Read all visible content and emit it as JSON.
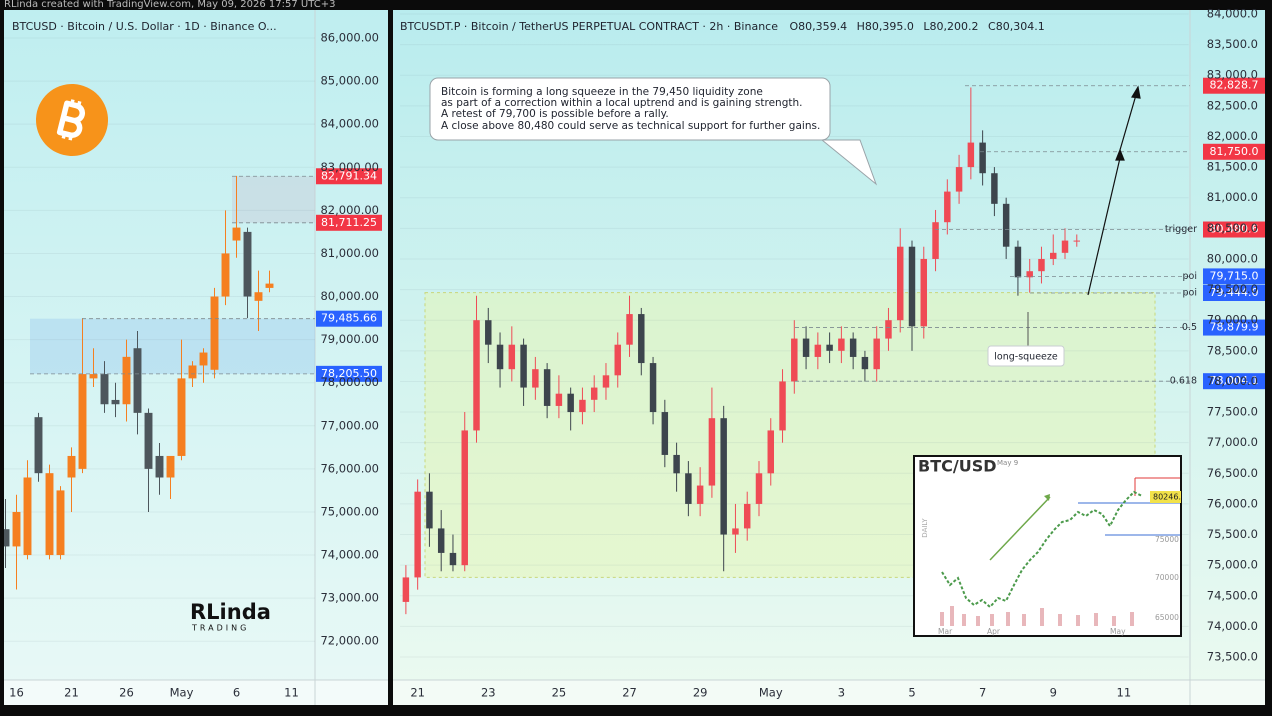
{
  "header": "RLinda created with TradingView.com, May 09, 2026 17:57 UTC+3",
  "branding": {
    "name": "RLinda",
    "tagline": "TRADING"
  },
  "chart_data": [
    {
      "type": "candlestick",
      "title": "BTCUSD · Bitcoin / U.S. Dollar · 1D · Binance  O...",
      "up_color": "#f57f20",
      "down_color": "#4d565c",
      "categories": [
        null,
        "16",
        null,
        null,
        null,
        null,
        "21",
        null,
        null,
        null,
        null,
        "26",
        null,
        null,
        null,
        null,
        "May",
        null,
        null,
        null,
        null,
        "6",
        null,
        null,
        null,
        null,
        "11",
        null,
        null
      ],
      "open": [
        74600,
        74200,
        74000,
        77200,
        74000,
        74000,
        75800,
        76000,
        78100,
        78200,
        77600,
        77500,
        78800,
        77300,
        76300,
        75800,
        76300,
        78100,
        78400,
        78300,
        80000,
        81300,
        81500,
        79900,
        80200,
        null,
        null,
        null,
        null
      ],
      "high": [
        75300,
        75400,
        76200,
        77300,
        76100,
        75600,
        76500,
        79500,
        78800,
        78500,
        78000,
        79000,
        79200,
        77400,
        76600,
        76300,
        79000,
        78500,
        78800,
        80200,
        82000,
        82800,
        81600,
        80600,
        80600,
        null,
        null,
        null,
        null
      ],
      "low": [
        73700,
        73200,
        73900,
        75700,
        73900,
        73900,
        75000,
        75900,
        77900,
        77300,
        77200,
        77100,
        76800,
        75000,
        75400,
        75300,
        76200,
        77900,
        78000,
        78100,
        79800,
        80900,
        79500,
        79200,
        80100,
        null,
        null,
        null,
        null
      ],
      "close": [
        74200,
        75000,
        75800,
        75900,
        75900,
        75500,
        76300,
        78200,
        78200,
        77500,
        77500,
        78600,
        77300,
        76000,
        75800,
        76300,
        78100,
        78400,
        78700,
        80000,
        81000,
        81600,
        80000,
        80100,
        80300,
        null,
        null,
        null,
        null
      ],
      "ylim": [
        71100,
        86650
      ],
      "yticks": [
        {
          "value": 72000,
          "label": "72,000.00"
        },
        {
          "value": 73000,
          "label": "73,000.00"
        },
        {
          "value": 74000,
          "label": "74,000.00"
        },
        {
          "value": 75000,
          "label": "75,000.00"
        },
        {
          "value": 76000,
          "label": "76,000.00"
        },
        {
          "value": 77000,
          "label": "77,000.00"
        },
        {
          "value": 78000,
          "label": "78,000.00"
        },
        {
          "value": 79000,
          "label": "79,000.00"
        },
        {
          "value": 80000,
          "label": "80,000.00"
        },
        {
          "value": 81000,
          "label": "81,000.00"
        },
        {
          "value": 82000,
          "label": "82,000.00"
        },
        {
          "value": 83000,
          "label": "83,000.00"
        },
        {
          "value": 84000,
          "label": "84,000.00"
        },
        {
          "value": 85000,
          "label": "85,000.00"
        },
        {
          "value": 86000,
          "label": "86,000.00"
        }
      ],
      "levels": [
        {
          "value": 82791.34,
          "label": "82,791.34",
          "color": "#f23645"
        },
        {
          "value": 81711.25,
          "label": "81,711.25",
          "color": "#f23645"
        },
        {
          "value": 79485.66,
          "label": "79,485.66",
          "color": "#2962ff"
        },
        {
          "value": 78205.5,
          "label": "78,205.50",
          "color": "#2962ff"
        }
      ]
    },
    {
      "type": "candlestick",
      "title": "BTCUSDT.P · Bitcoin / TetherUS PERPETUAL CONTRACT · 2h · Binance",
      "ohlc": [
        "O80,359.4",
        "H80,395.0",
        "L80,200.2",
        "C80,304.1"
      ],
      "up_color": "#ef4b55",
      "down_color": "#3d454d",
      "categories": [
        null,
        "21",
        null,
        null,
        null,
        null,
        null,
        "23",
        null,
        null,
        null,
        null,
        null,
        "25",
        null,
        null,
        null,
        null,
        null,
        "27",
        null,
        null,
        null,
        null,
        null,
        "29",
        null,
        null,
        null,
        null,
        null,
        "May",
        null,
        null,
        null,
        null,
        null,
        "3",
        null,
        null,
        null,
        null,
        null,
        "5",
        null,
        null,
        null,
        null,
        null,
        "7",
        null,
        null,
        null,
        null,
        null,
        "9",
        null,
        null,
        null,
        null,
        null,
        "11",
        null,
        null,
        null,
        null,
        null
      ],
      "open": [
        74400,
        74800,
        76200,
        75600,
        75200,
        75000,
        77200,
        79000,
        78600,
        78200,
        78600,
        77900,
        78200,
        77600,
        77800,
        77500,
        77700,
        77900,
        78100,
        78600,
        79100,
        78300,
        77500,
        76800,
        76500,
        76000,
        76300,
        77400,
        75500,
        75600,
        76000,
        76500,
        77200,
        78000,
        78700,
        78400,
        78600,
        78500,
        78700,
        78400,
        78200,
        78700,
        79000,
        80200,
        78900,
        80000,
        80600,
        81100,
        81500,
        81900,
        81400,
        80900,
        80200,
        79700,
        79800,
        80000,
        80100,
        80300,
        null,
        null,
        null,
        null,
        null,
        null,
        null,
        null,
        null
      ],
      "high": [
        75000,
        76400,
        76500,
        75900,
        75500,
        77500,
        79400,
        79200,
        78800,
        78900,
        78700,
        78400,
        78300,
        78100,
        77900,
        77900,
        78100,
        78300,
        78800,
        79400,
        79200,
        78400,
        77700,
        77000,
        76700,
        76600,
        77900,
        77600,
        76000,
        76200,
        76700,
        77400,
        78200,
        79000,
        78900,
        78800,
        78800,
        78900,
        78800,
        78500,
        78900,
        79200,
        80500,
        80300,
        80200,
        80800,
        81300,
        81700,
        82800,
        82100,
        81500,
        81000,
        80300,
        80000,
        80200,
        80400,
        80500,
        80400,
        null,
        null,
        null,
        null,
        null,
        null,
        null,
        null,
        null
      ],
      "low": [
        74200,
        74600,
        75300,
        74900,
        74900,
        74900,
        77000,
        78300,
        77900,
        78000,
        77600,
        77700,
        77400,
        77400,
        77200,
        77300,
        77500,
        77700,
        77900,
        78400,
        78100,
        77300,
        76600,
        76200,
        75800,
        75800,
        76100,
        74900,
        75200,
        75400,
        75800,
        76300,
        77000,
        77800,
        78200,
        78200,
        78300,
        78300,
        78200,
        78000,
        78000,
        78500,
        78800,
        78500,
        78700,
        79800,
        80400,
        80900,
        81300,
        81200,
        80700,
        80000,
        79400,
        79450,
        79600,
        79900,
        80000,
        80200,
        null,
        null,
        null,
        null,
        null,
        null,
        null,
        null,
        null
      ],
      "close": [
        74800,
        76200,
        75600,
        75200,
        75000,
        77200,
        79000,
        78600,
        78200,
        78600,
        77900,
        78200,
        77600,
        77800,
        77500,
        77700,
        77900,
        78100,
        78600,
        79100,
        78300,
        77500,
        76800,
        76500,
        76000,
        76300,
        77400,
        75500,
        75600,
        76000,
        76500,
        77200,
        78000,
        78700,
        78400,
        78600,
        78500,
        78700,
        78400,
        78200,
        78700,
        79000,
        80200,
        78900,
        80000,
        80600,
        81100,
        81500,
        81900,
        81400,
        80900,
        80200,
        79700,
        79800,
        80000,
        80100,
        80300,
        80300,
        null,
        null,
        null,
        null,
        null,
        null,
        null,
        null,
        null
      ],
      "ylim": [
        73125,
        84065
      ],
      "yticks": [
        {
          "value": 73500,
          "label": "73,500.0"
        },
        {
          "value": 74000,
          "label": "74,000.0"
        },
        {
          "value": 74500,
          "label": "74,500.0"
        },
        {
          "value": 75000,
          "label": "75,000.0"
        },
        {
          "value": 75500,
          "label": "75,500.0"
        },
        {
          "value": 76000,
          "label": "76,000.0"
        },
        {
          "value": 76500,
          "label": "76,500.0"
        },
        {
          "value": 77000,
          "label": "77,000.0"
        },
        {
          "value": 77500,
          "label": "77,500.0"
        },
        {
          "value": 78000,
          "label": "78,000.0"
        },
        {
          "value": 78500,
          "label": "78,500.0"
        },
        {
          "value": 79000,
          "label": "79,000.0"
        },
        {
          "value": 79500,
          "label": "79,500.0"
        },
        {
          "value": 80000,
          "label": "80,000.0"
        },
        {
          "value": 80500,
          "label": "80,500.0"
        },
        {
          "value": 81000,
          "label": "81,000.0"
        },
        {
          "value": 81500,
          "label": "81,500.0"
        },
        {
          "value": 82000,
          "label": "82,000.0"
        },
        {
          "value": 82500,
          "label": "82,500.0"
        },
        {
          "value": 83000,
          "label": "83,000.0"
        },
        {
          "value": 83500,
          "label": "83,500.0"
        },
        {
          "value": 84000,
          "label": "84,000.0"
        }
      ],
      "levels": [
        {
          "value": 82828.7,
          "label": "82,828.7",
          "color": "#f23645"
        },
        {
          "value": 81750.0,
          "label": "81,750.0",
          "color": "#f23645"
        },
        {
          "value": 80480.6,
          "label": "80,480.6",
          "color": "#f23645",
          "tag": "trigger"
        },
        {
          "value": 79715.0,
          "label": "79,715.0",
          "color": "#2962ff",
          "tag": "poi"
        },
        {
          "value": 79444.0,
          "label": "79,444.0",
          "color": "#2962ff",
          "tag": "poi"
        },
        {
          "value": 78879.9,
          "label": "78,879.9",
          "color": "#2962ff",
          "tag": "0.5"
        },
        {
          "value": 78004.1,
          "label": "78,004.1",
          "color": "#2962ff",
          "tag": "0.618"
        }
      ],
      "zone": [
        74800,
        79450
      ],
      "annotation": [
        "Bitcoin is forming a long squeeze in the 79,450 liquidity zone",
        "as part of a correction within a local uptrend and is gaining strength.",
        "A retest of 79,700 is possible before a rally.",
        "A close above 80,480 could serve as technical support for further gains."
      ],
      "callout": "long-squeeze"
    }
  ],
  "inset": {
    "title": "BTC/USD",
    "date": "May 9",
    "timeframe": "DAILY",
    "price": "80246.",
    "levels": [
      "75000",
      "70000",
      "65000"
    ],
    "months": [
      "Mar",
      "Apr",
      "May"
    ]
  }
}
